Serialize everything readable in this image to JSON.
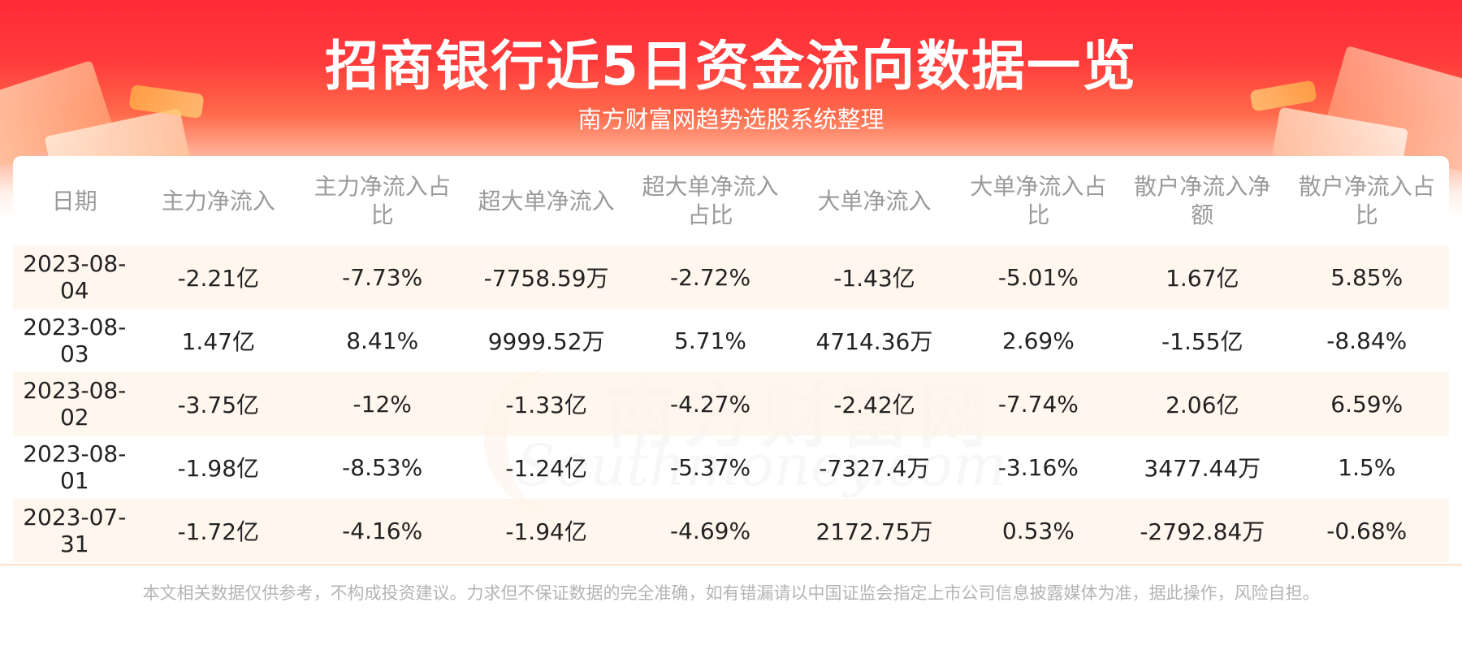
{
  "header": {
    "title": "招商银行近5日资金流向数据一览",
    "subtitle": "南方财富网趋势选股系统整理"
  },
  "watermark": {
    "cn": "南方财富网",
    "en": "Southmoney.com"
  },
  "table": {
    "columns": [
      "日期",
      "主力净流入",
      "主力净流入占比",
      "超大单净流入",
      "超大单净流入占比",
      "大单净流入",
      "大单净流入占比",
      "散户净流入净额",
      "散户净流入占比"
    ],
    "rows": [
      [
        "2023-08-04",
        "-2.21亿",
        "-7.73%",
        "-7758.59万",
        "-2.72%",
        "-1.43亿",
        "-5.01%",
        "1.67亿",
        "5.85%"
      ],
      [
        "2023-08-03",
        "1.47亿",
        "8.41%",
        "9999.52万",
        "5.71%",
        "4714.36万",
        "2.69%",
        "-1.55亿",
        "-8.84%"
      ],
      [
        "2023-08-02",
        "-3.75亿",
        "-12%",
        "-1.33亿",
        "-4.27%",
        "-2.42亿",
        "-7.74%",
        "2.06亿",
        "6.59%"
      ],
      [
        "2023-08-01",
        "-1.98亿",
        "-8.53%",
        "-1.24亿",
        "-5.37%",
        "-7327.4万",
        "-3.16%",
        "3477.44万",
        "1.5%"
      ],
      [
        "2023-07-31",
        "-1.72亿",
        "-4.16%",
        "-1.94亿",
        "-4.69%",
        "2172.75万",
        "0.53%",
        "-2792.84万",
        "-0.68%"
      ]
    ]
  },
  "footer": {
    "disclaimer": "本文相关数据仅供参考，不构成投资建议。力求但不保证数据的完全准确，如有错漏请以中国证监会指定上市公司信息披露媒体为准，据此操作，风险自担。"
  },
  "colors": {
    "banner_red": "#ff2a36",
    "header_text": "#9a9a9a",
    "body_text": "#222222",
    "stripe": "#fff5eb"
  }
}
